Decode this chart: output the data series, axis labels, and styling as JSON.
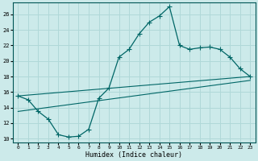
{
  "xlabel": "Humidex (Indice chaleur)",
  "bg_color": "#cceaea",
  "grid_color": "#b0d8d8",
  "line_color": "#006666",
  "xlim": [
    -0.5,
    23.5
  ],
  "ylim": [
    9.5,
    27.5
  ],
  "xticks": [
    0,
    1,
    2,
    3,
    4,
    5,
    6,
    7,
    8,
    9,
    10,
    11,
    12,
    13,
    14,
    15,
    16,
    17,
    18,
    19,
    20,
    21,
    22,
    23
  ],
  "yticks": [
    10,
    12,
    14,
    16,
    18,
    20,
    22,
    24,
    26
  ],
  "curve1_x": [
    0,
    1,
    2,
    3,
    4,
    5,
    6,
    7,
    8,
    9,
    10,
    11,
    12,
    13,
    14,
    15,
    16,
    17,
    18,
    19,
    20,
    21,
    22,
    23
  ],
  "curve1_y": [
    15.5,
    15.0,
    13.5,
    12.5,
    10.5,
    10.2,
    10.3,
    11.2,
    15.2,
    16.5,
    20.5,
    21.5,
    23.5,
    25.0,
    25.8,
    27.0,
    22.0,
    21.5,
    21.7,
    21.8,
    21.5,
    20.5,
    19.0,
    18.0
  ],
  "line2_x": [
    0,
    23
  ],
  "line2_y": [
    15.5,
    18.0
  ],
  "line3_x": [
    0,
    23
  ],
  "line3_y": [
    13.5,
    17.5
  ]
}
